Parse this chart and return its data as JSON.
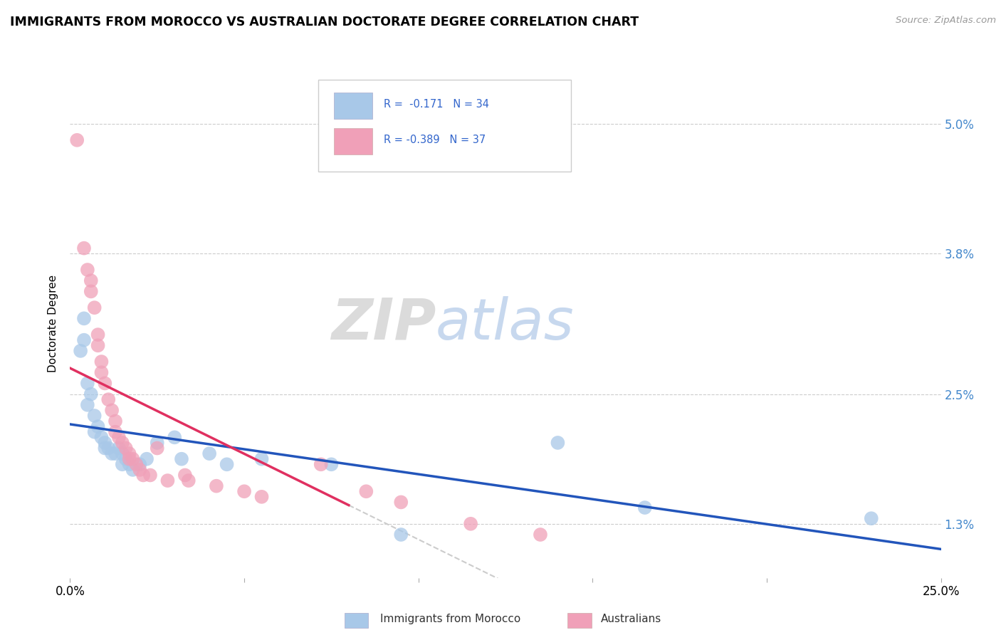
{
  "title": "IMMIGRANTS FROM MOROCCO VS AUSTRALIAN DOCTORATE DEGREE CORRELATION CHART",
  "source_text": "Source: ZipAtlas.com",
  "ylabel": "Doctorate Degree",
  "ytick_labels": [
    "1.3%",
    "2.5%",
    "3.8%",
    "5.0%"
  ],
  "ytick_values": [
    1.3,
    2.5,
    3.8,
    5.0
  ],
  "xlim": [
    0.0,
    25.0
  ],
  "ylim": [
    0.8,
    5.5
  ],
  "legend_blue_r": "R =  -0.171",
  "legend_blue_n": "N = 34",
  "legend_pink_r": "R = -0.389",
  "legend_pink_n": "N = 37",
  "blue_color": "#a8c8e8",
  "pink_color": "#f0a0b8",
  "blue_line_color": "#2255bb",
  "pink_line_color": "#e03060",
  "watermark_zip": "ZIP",
  "watermark_atlas": "atlas",
  "blue_scatter": [
    [
      0.3,
      2.9
    ],
    [
      0.4,
      3.2
    ],
    [
      0.4,
      3.0
    ],
    [
      0.5,
      2.6
    ],
    [
      0.5,
      2.4
    ],
    [
      0.6,
      2.5
    ],
    [
      0.7,
      2.3
    ],
    [
      0.7,
      2.15
    ],
    [
      0.8,
      2.2
    ],
    [
      0.9,
      2.1
    ],
    [
      1.0,
      2.05
    ],
    [
      1.0,
      2.0
    ],
    [
      1.1,
      2.0
    ],
    [
      1.2,
      1.95
    ],
    [
      1.3,
      1.95
    ],
    [
      1.4,
      2.0
    ],
    [
      1.5,
      1.95
    ],
    [
      1.5,
      1.85
    ],
    [
      1.6,
      1.9
    ],
    [
      1.7,
      1.85
    ],
    [
      1.8,
      1.8
    ],
    [
      2.0,
      1.85
    ],
    [
      2.2,
      1.9
    ],
    [
      2.5,
      2.05
    ],
    [
      3.0,
      2.1
    ],
    [
      3.2,
      1.9
    ],
    [
      4.0,
      1.95
    ],
    [
      4.5,
      1.85
    ],
    [
      5.5,
      1.9
    ],
    [
      7.5,
      1.85
    ],
    [
      9.5,
      1.2
    ],
    [
      14.0,
      2.05
    ],
    [
      16.5,
      1.45
    ],
    [
      23.0,
      1.35
    ]
  ],
  "pink_scatter": [
    [
      0.2,
      4.85
    ],
    [
      0.4,
      3.85
    ],
    [
      0.5,
      3.65
    ],
    [
      0.6,
      3.55
    ],
    [
      0.6,
      3.45
    ],
    [
      0.7,
      3.3
    ],
    [
      0.8,
      3.05
    ],
    [
      0.8,
      2.95
    ],
    [
      0.9,
      2.8
    ],
    [
      0.9,
      2.7
    ],
    [
      1.0,
      2.6
    ],
    [
      1.1,
      2.45
    ],
    [
      1.2,
      2.35
    ],
    [
      1.3,
      2.25
    ],
    [
      1.3,
      2.15
    ],
    [
      1.4,
      2.1
    ],
    [
      1.5,
      2.05
    ],
    [
      1.6,
      2.0
    ],
    [
      1.7,
      1.95
    ],
    [
      1.7,
      1.9
    ],
    [
      1.8,
      1.9
    ],
    [
      1.9,
      1.85
    ],
    [
      2.0,
      1.8
    ],
    [
      2.1,
      1.75
    ],
    [
      2.3,
      1.75
    ],
    [
      2.5,
      2.0
    ],
    [
      2.8,
      1.7
    ],
    [
      3.3,
      1.75
    ],
    [
      3.4,
      1.7
    ],
    [
      4.2,
      1.65
    ],
    [
      5.0,
      1.6
    ],
    [
      5.5,
      1.55
    ],
    [
      7.2,
      1.85
    ],
    [
      8.5,
      1.6
    ],
    [
      9.5,
      1.5
    ],
    [
      11.5,
      1.3
    ],
    [
      13.5,
      1.2
    ]
  ]
}
